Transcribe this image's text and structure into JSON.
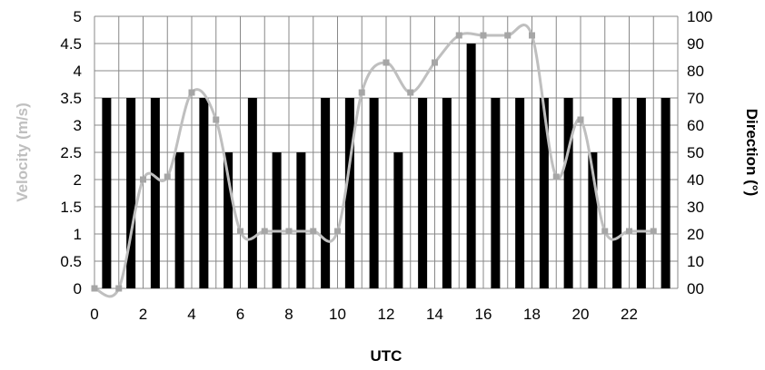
{
  "chart_data": {
    "type": "bar+line",
    "title": "",
    "xlabel": "UTC",
    "ylabel_left": "Velocity (m/s)",
    "ylabel_right": "Direction (°)",
    "x": [
      0,
      1,
      2,
      3,
      4,
      5,
      6,
      7,
      8,
      9,
      10,
      11,
      12,
      13,
      14,
      15,
      16,
      17,
      18,
      19,
      20,
      21,
      22,
      23
    ],
    "x_ticks": [
      "0",
      "2",
      "4",
      "6",
      "8",
      "10",
      "12",
      "14",
      "16",
      "18",
      "20",
      "22"
    ],
    "y_left_ticks": [
      "0",
      "0.5",
      "1",
      "1.5",
      "2",
      "2.5",
      "3",
      "3.5",
      "4",
      "4.5",
      "5"
    ],
    "y_right_ticks": [
      "00",
      "10",
      "20",
      "30",
      "40",
      "50",
      "60",
      "70",
      "80",
      "90",
      "100"
    ],
    "ylim_left": [
      0,
      5
    ],
    "ylim_right": [
      0,
      100
    ],
    "grid": true,
    "series": [
      {
        "axis": "left",
        "kind": "bar",
        "color": "#000000",
        "values": [
          3.5,
          3.5,
          3.5,
          2.5,
          3.5,
          2.5,
          3.5,
          2.5,
          2.5,
          3.5,
          3.5,
          3.5,
          2.5,
          3.5,
          3.5,
          4.5,
          3.5,
          3.5,
          3.5,
          3.5,
          2.5,
          3.5,
          3.5,
          3.5
        ]
      },
      {
        "axis": "right",
        "kind": "line",
        "color": "#bfbfbf",
        "marker_color": "#a6a6a6",
        "values": [
          0,
          0,
          40,
          41,
          72,
          62,
          21,
          21,
          21,
          21,
          21,
          72,
          83,
          72,
          83,
          93,
          93,
          93,
          93,
          41,
          62,
          21,
          21,
          21
        ]
      }
    ],
    "colors": {
      "ylabel_left": "#bfbfbf",
      "ylabel_right": "#000000",
      "grid": "#888888"
    }
  }
}
